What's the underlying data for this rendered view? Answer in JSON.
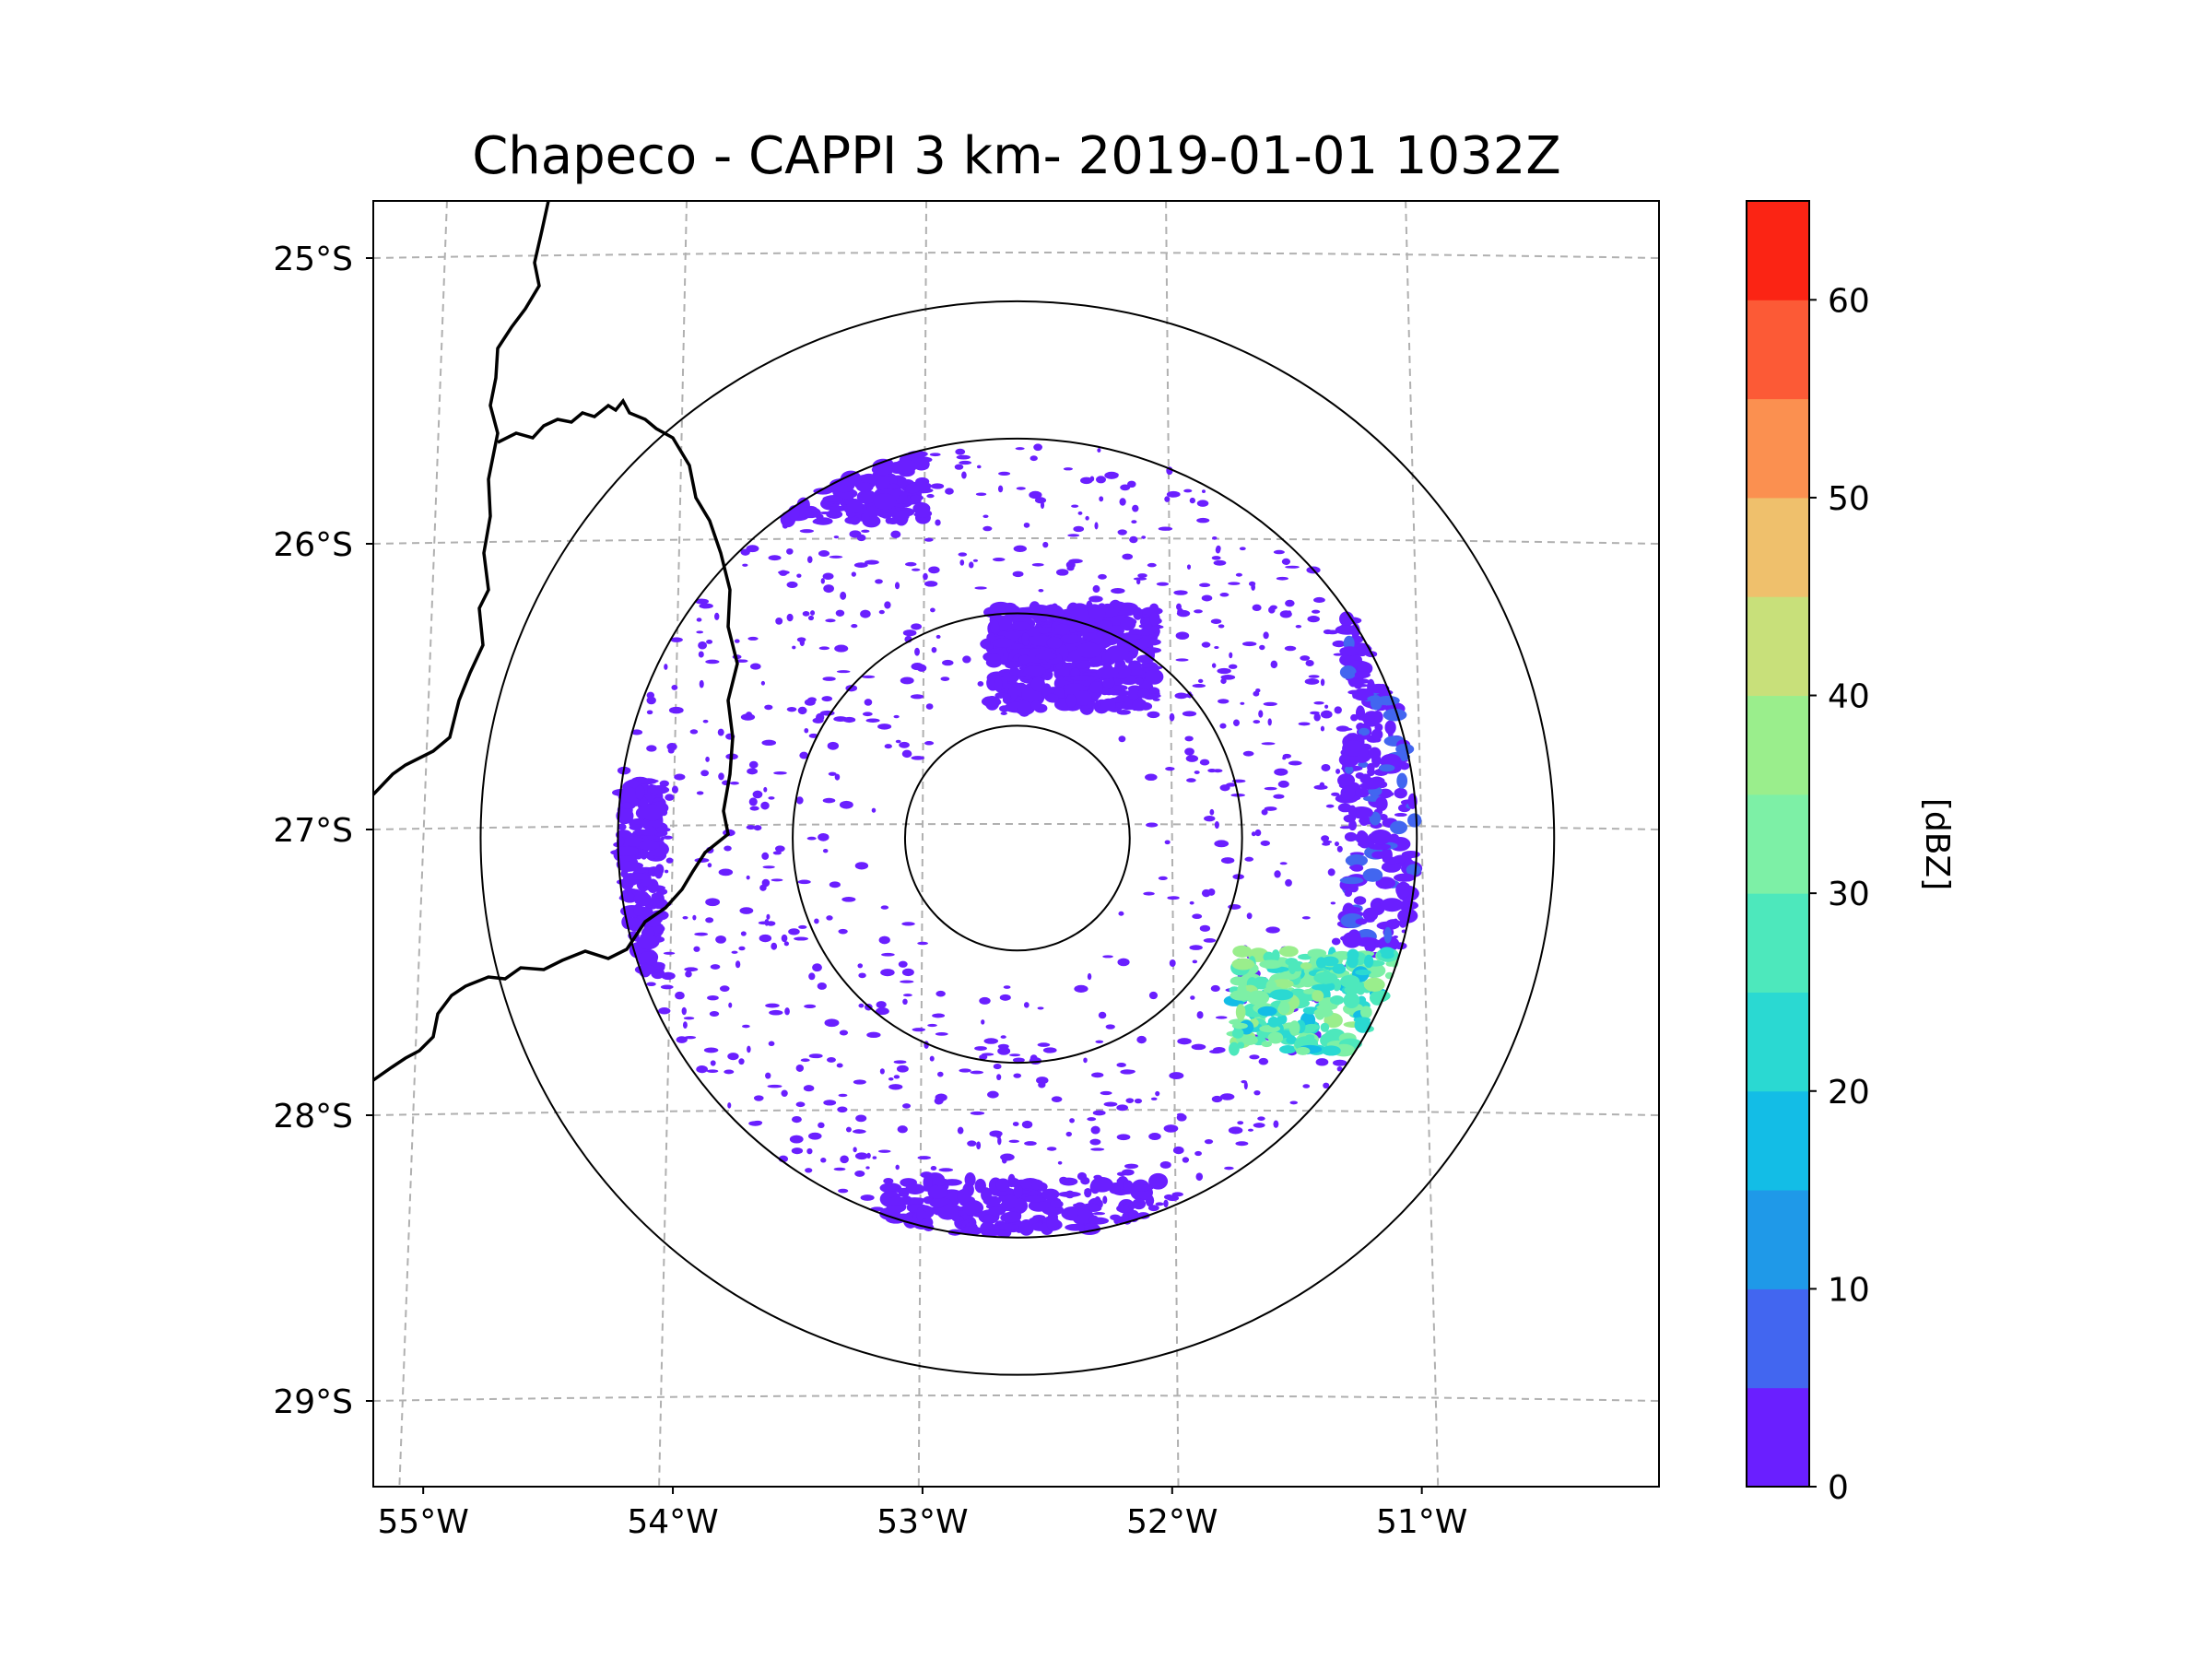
{
  "chart_data": {
    "type": "heatmap",
    "title": "Chapeco - CAPPI 3 km- 2019-01-01 1032Z",
    "map": {
      "lon_range": [
        -55.2,
        -50.05
      ],
      "lat_range": [
        -29.3,
        -24.8
      ],
      "lon_ticks": [
        -55,
        -54,
        -53,
        -52,
        -51
      ],
      "lon_tick_labels": [
        "55°W",
        "54°W",
        "53°W",
        "52°W",
        "51°W"
      ],
      "lat_ticks": [
        -25,
        -26,
        -27,
        -28,
        -29
      ],
      "lat_tick_labels": [
        "25°S",
        "26°S",
        "27°S",
        "28°S",
        "29°S"
      ],
      "gridlines": true,
      "gridline_style": "dashed"
    },
    "radar": {
      "center_lon": -52.62,
      "center_lat": -27.03,
      "range_rings_deg": [
        0.45,
        0.9,
        1.6,
        2.15
      ]
    },
    "echo_regions": [
      {
        "name": "west-cell",
        "lon": -54.27,
        "lat": -27.18,
        "dbz": 3
      },
      {
        "name": "east-band",
        "lon": -51.05,
        "lat": -26.8,
        "dbz": 4
      },
      {
        "name": "east-strong-band",
        "lon": -51.2,
        "lat": -27.6,
        "dbz": 28
      },
      {
        "name": "south-cell",
        "lon": -52.6,
        "lat": -28.45,
        "dbz": 3
      },
      {
        "name": "north-cell",
        "lon": -52.4,
        "lat": -26.4,
        "dbz": 3
      },
      {
        "name": "northwest-cell",
        "lon": -53.4,
        "lat": -25.7,
        "dbz": 2
      }
    ],
    "colorbar": {
      "label": "[dBZ]",
      "vmin": 0,
      "vmax": 65,
      "ticks": [
        0,
        10,
        20,
        30,
        40,
        50,
        60
      ],
      "tick_labels": [
        "0",
        "10",
        "20",
        "30",
        "40",
        "50",
        "60"
      ],
      "colors": [
        "#6a1fff",
        "#4266f0",
        "#1f99e8",
        "#13bde6",
        "#2ad9d2",
        "#4de8bc",
        "#7df0a6",
        "#9aee8c",
        "#c8e07a",
        "#efc06c",
        "#fb9050",
        "#fc5a36",
        "#fb2414"
      ]
    }
  }
}
